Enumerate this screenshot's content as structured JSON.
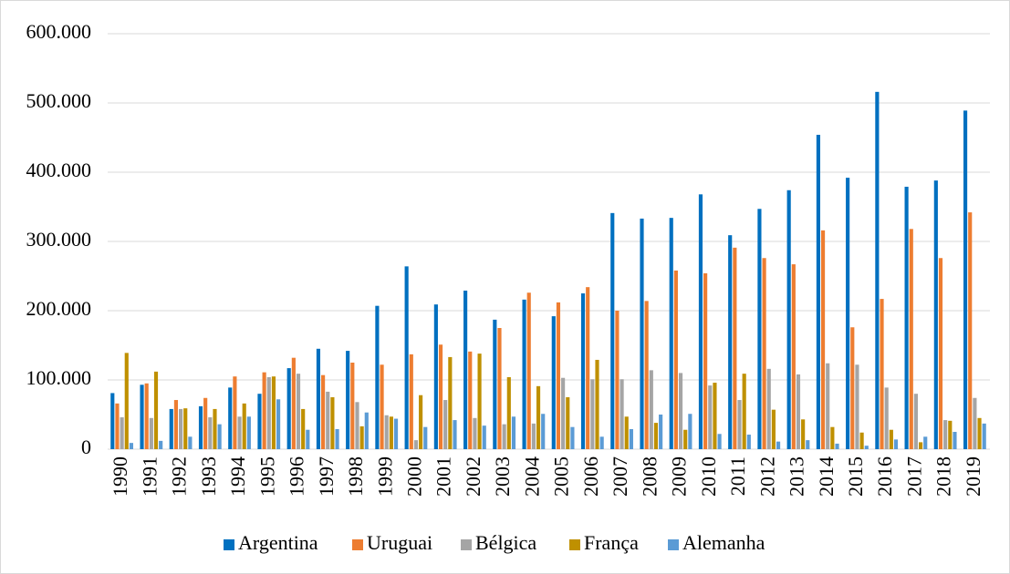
{
  "chart_data": {
    "type": "bar",
    "categories": [
      "1990",
      "1991",
      "1992",
      "1993",
      "1994",
      "1995",
      "1996",
      "1997",
      "1998",
      "1999",
      "2000",
      "2001",
      "2002",
      "2003",
      "2004",
      "2005",
      "2006",
      "2007",
      "2008",
      "2009",
      "2010",
      "2011",
      "2012",
      "2013",
      "2014",
      "2015",
      "2016",
      "2017",
      "2018",
      "2019"
    ],
    "series": [
      {
        "name": "Argentina",
        "color": "#0070c0",
        "values": [
          81000,
          93000,
          58000,
          62000,
          89000,
          80000,
          117000,
          145000,
          142000,
          207000,
          264000,
          209000,
          229000,
          187000,
          216000,
          192000,
          225000,
          341000,
          333000,
          334000,
          368000,
          309000,
          347000,
          374000,
          454000,
          392000,
          516000,
          379000,
          388000,
          489000
        ]
      },
      {
        "name": "Uruguai",
        "color": "#ed7d31",
        "values": [
          66000,
          95000,
          71000,
          74000,
          105000,
          111000,
          132000,
          107000,
          125000,
          122000,
          137000,
          151000,
          141000,
          175000,
          226000,
          212000,
          234000,
          200000,
          214000,
          258000,
          254000,
          291000,
          276000,
          267000,
          316000,
          176000,
          217000,
          318000,
          276000,
          342000
        ]
      },
      {
        "name": "Bélgica",
        "color": "#a5a5a5",
        "values": [
          46000,
          45000,
          58000,
          46000,
          47000,
          104000,
          109000,
          83000,
          68000,
          49000,
          13000,
          71000,
          45000,
          36000,
          37000,
          103000,
          101000,
          101000,
          114000,
          110000,
          92000,
          71000,
          116000,
          108000,
          124000,
          122000,
          89000,
          80000,
          42000,
          74000
        ]
      },
      {
        "name": "França",
        "color": "#bf9000",
        "values": [
          139000,
          112000,
          59000,
          58000,
          66000,
          105000,
          58000,
          75000,
          33000,
          47000,
          78000,
          133000,
          138000,
          104000,
          91000,
          75000,
          129000,
          47000,
          38000,
          28000,
          96000,
          109000,
          57000,
          43000,
          32000,
          24000,
          28000,
          10000,
          41000,
          45000
        ]
      },
      {
        "name": "Alemanha",
        "color": "#5b9bd5",
        "values": [
          9000,
          12000,
          18000,
          36000,
          47000,
          72000,
          28000,
          29000,
          53000,
          44000,
          32000,
          42000,
          34000,
          47000,
          51000,
          32000,
          18000,
          29000,
          50000,
          51000,
          22000,
          21000,
          11000,
          13000,
          8000,
          5000,
          14000,
          18000,
          25000,
          37000
        ]
      }
    ],
    "ylim": [
      0,
      600000
    ],
    "yticks": [
      0,
      {
        "value": 100000,
        "label": "100.000"
      },
      {
        "value": 200000,
        "label": "200.000"
      },
      {
        "value": 300000,
        "label": "300.000"
      },
      {
        "value": 400000,
        "label": "400.000"
      },
      {
        "value": 500000,
        "label": "500.000"
      },
      {
        "value": 600000,
        "label": "600.000"
      }
    ],
    "grid": true,
    "legend": "bottom"
  }
}
